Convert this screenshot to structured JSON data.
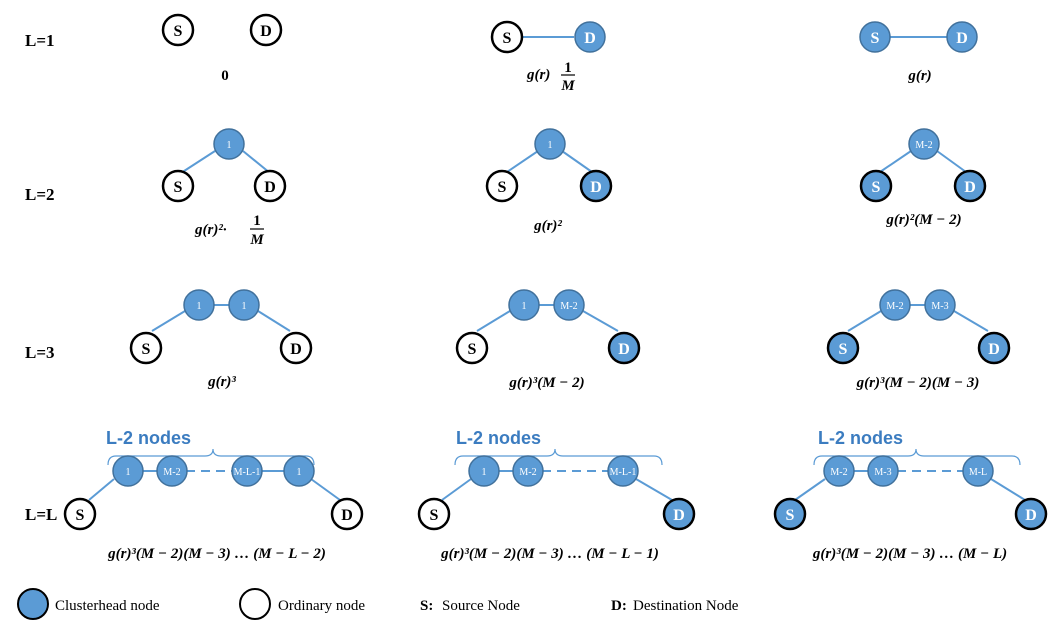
{
  "row_labels": [
    "L=1",
    "L=2",
    "L=3",
    "L=L"
  ],
  "node_letters": {
    "source": "S",
    "destination": "D"
  },
  "node_numbers": {
    "l2": [
      "1",
      "1",
      "M-2"
    ],
    "l3": [
      "1",
      "1",
      "1",
      "M-2",
      "M-2",
      "M-3"
    ],
    "ll_a": [
      "1",
      "M-2",
      "M-L-1",
      "1"
    ],
    "ll_b": [
      "1",
      "M-2",
      "M-L-1"
    ],
    "ll_c": [
      "M-2",
      "M-3",
      "M-L"
    ]
  },
  "brace_label": "L-2 nodes",
  "expressions": {
    "l1_a": "0",
    "l1_b_main": "g(r)",
    "l1_b_frac_num": "1",
    "l1_b_frac_den": "M",
    "l1_c": "g(r)",
    "l2_a_main": "g(r)²·",
    "l2_a_frac_num": "1",
    "l2_a_frac_den": "M",
    "l2_b": "g(r)²",
    "l2_c": "g(r)²(M − 2)",
    "l3_a": "g(r)³",
    "l3_b": "g(r)³(M − 2)",
    "l3_c": "g(r)³(M − 2)(M − 3)",
    "ll_a": "g(r)³(M − 2)(M − 3) … (M − L − 2)",
    "ll_b": "g(r)³(M − 2)(M − 3) … (M − L − 1)",
    "ll_c": "g(r)³(M − 2)(M − 3) … (M − L)"
  },
  "legend": {
    "clusterhead": "Clusterhead node",
    "ordinary": "Ordinary node",
    "source_key": "S:",
    "source_text": "Source Node",
    "dest_key": "D:",
    "dest_text": "Destination Node"
  },
  "colors": {
    "node_fill": "#5b9bd5",
    "node_stroke": "#41719c",
    "line": "#5b9bd5",
    "label_blue": "#3b7cc0"
  }
}
